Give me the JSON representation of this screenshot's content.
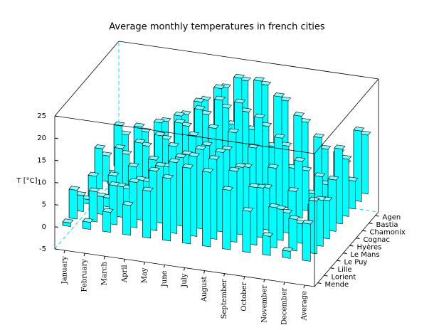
{
  "chart_data": {
    "type": "bar3d",
    "title": "Average monthly temperatures in french cities",
    "ylabel": "T [°C]",
    "categories": [
      "January",
      "February",
      "March",
      "April",
      "May",
      "June",
      "July",
      "August",
      "September",
      "October",
      "November",
      "December",
      "Average"
    ],
    "color": "#00ffff",
    "series": [
      {
        "name": "Agen",
        "values": [
          5.5,
          6.8,
          9.8,
          12,
          15.9,
          19.4,
          21.6,
          21.3,
          18.4,
          14.2,
          8.8,
          6.2,
          13.3
        ]
      },
      {
        "name": "Bastia",
        "values": [
          9.2,
          9.6,
          11.2,
          13.4,
          17.2,
          20.9,
          23.9,
          23.9,
          21,
          17.3,
          13.1,
          10.3,
          15.9
        ]
      },
      {
        "name": "Chamonix",
        "values": [
          -2.3,
          -1.1,
          2,
          5.2,
          9.6,
          12.8,
          15.1,
          14.6,
          11.5,
          7.2,
          2.1,
          -1.4,
          6.3
        ]
      },
      {
        "name": "Cognac",
        "values": [
          5.8,
          6.8,
          9.3,
          11.5,
          15.1,
          18.4,
          20.5,
          20.3,
          17.7,
          13.9,
          9,
          6.5,
          12.9
        ]
      },
      {
        "name": "Hyères",
        "values": [
          9.1,
          9.8,
          11.7,
          14,
          17.5,
          21.2,
          24,
          24,
          21.3,
          17.4,
          12.8,
          10,
          16.9
        ]
      },
      {
        "name": "Le Mans",
        "values": [
          4.6,
          5.3,
          8,
          10.2,
          13.9,
          17,
          19.3,
          19,
          16.2,
          12.3,
          7.7,
          5.2,
          11.6
        ]
      },
      {
        "name": "Le Puy",
        "values": [
          1,
          2,
          4.7,
          7,
          11,
          14.4,
          17.1,
          16.8,
          13.5,
          9.5,
          4.5,
          1.9,
          8.6
        ]
      },
      {
        "name": "Lille",
        "values": [
          3.6,
          4,
          6.9,
          9,
          12.8,
          15.4,
          17.9,
          17.9,
          15.2,
          11.2,
          7,
          4.4,
          10.4
        ]
      },
      {
        "name": "Lorient",
        "values": [
          6.5,
          6.8,
          8.8,
          10.2,
          13.4,
          16,
          18,
          18,
          16,
          13,
          9.1,
          7.1,
          11.9
        ]
      },
      {
        "name": "Mende",
        "values": [
          0.8,
          1.6,
          4.5,
          6.7,
          10.6,
          14.1,
          17.1,
          16.8,
          13.4,
          9.3,
          4.3,
          1.6,
          8.4
        ]
      }
    ],
    "ylim": [
      -5,
      25
    ],
    "yticks": [
      -5,
      0,
      5,
      10,
      15,
      20,
      25
    ]
  }
}
